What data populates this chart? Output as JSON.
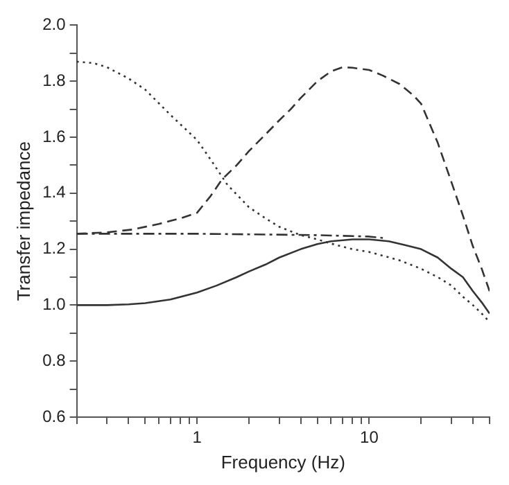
{
  "chart_data": {
    "type": "line",
    "xlabel": "Frequency (Hz)",
    "ylabel": "Transfer impedance",
    "log": "x",
    "grid": false,
    "marker": "none",
    "xlim": [
      0.2,
      50
    ],
    "ylim": [
      0.6,
      2.0
    ],
    "xticks": [
      {
        "value": 0.2,
        "label": null
      },
      {
        "value": 0.3,
        "label": null
      },
      {
        "value": 0.4,
        "label": null
      },
      {
        "value": 0.5,
        "label": null
      },
      {
        "value": 0.6,
        "label": null
      },
      {
        "value": 0.7,
        "label": null
      },
      {
        "value": 0.8,
        "label": null
      },
      {
        "value": 0.9,
        "label": null
      },
      1,
      {
        "value": 2,
        "label": null
      },
      {
        "value": 3,
        "label": null
      },
      {
        "value": 4,
        "label": null
      },
      {
        "value": 5,
        "label": null
      },
      {
        "value": 6,
        "label": null
      },
      {
        "value": 7,
        "label": null
      },
      {
        "value": 8,
        "label": null
      },
      {
        "value": 9,
        "label": null
      },
      10,
      {
        "value": 20,
        "label": null
      },
      {
        "value": 30,
        "label": null
      },
      {
        "value": 40,
        "label": null
      },
      {
        "value": 50,
        "label": null
      }
    ],
    "yticks": [
      0.6,
      {
        "value": 0.7,
        "label": null
      },
      0.8,
      {
        "value": 0.9,
        "label": null
      },
      {
        "value": 1,
        "label": "1.0"
      },
      {
        "value": 1.1,
        "label": null
      },
      1.2,
      {
        "value": 1.3,
        "label": null
      },
      1.4,
      {
        "value": 1.5,
        "label": null
      },
      1.6,
      {
        "value": 1.7,
        "label": null
      },
      1.8,
      {
        "value": 1.9,
        "label": null
      },
      {
        "value": 2,
        "label": "2.0"
      }
    ],
    "series": [
      {
        "color": "#333333",
        "line_style": "solid",
        "x": [
          0.2,
          0.3,
          0.4,
          0.5,
          0.7,
          1,
          1.3,
          1.7,
          2,
          2.5,
          3,
          4,
          5,
          6,
          8,
          10,
          13,
          16,
          20,
          25,
          30,
          35,
          40,
          45,
          50
        ],
        "values": [
          1.0,
          1.0,
          1.003,
          1.007,
          1.02,
          1.045,
          1.07,
          1.1,
          1.12,
          1.145,
          1.17,
          1.2,
          1.218,
          1.228,
          1.235,
          1.235,
          1.228,
          1.215,
          1.2,
          1.17,
          1.13,
          1.1,
          1.05,
          1.01,
          0.97
        ]
      },
      {
        "color": "#333333",
        "line_style": "dashed",
        "x": [
          0.2,
          0.3,
          0.42,
          0.6,
          0.8,
          1,
          1.2,
          1.4,
          1.7,
          2,
          2.5,
          3,
          3.5,
          4,
          5,
          6,
          7,
          8,
          10,
          12,
          15,
          18,
          20,
          25,
          30,
          35,
          40,
          45,
          50
        ],
        "values": [
          1.255,
          1.26,
          1.27,
          1.29,
          1.31,
          1.33,
          1.39,
          1.45,
          1.5,
          1.55,
          1.61,
          1.66,
          1.7,
          1.74,
          1.8,
          1.835,
          1.85,
          1.848,
          1.84,
          1.82,
          1.79,
          1.75,
          1.72,
          1.58,
          1.44,
          1.32,
          1.21,
          1.13,
          1.05
        ]
      },
      {
        "color": "#333333",
        "line_style": "dotted",
        "x": [
          0.2,
          0.25,
          0.3,
          0.4,
          0.5,
          0.7,
          1,
          1.2,
          1.5,
          2,
          2.5,
          3,
          4,
          5,
          6,
          8,
          10,
          15,
          20,
          25,
          30,
          35,
          40,
          45,
          50
        ],
        "values": [
          1.87,
          1.865,
          1.85,
          1.81,
          1.77,
          1.68,
          1.59,
          1.52,
          1.43,
          1.35,
          1.31,
          1.28,
          1.25,
          1.235,
          1.22,
          1.2,
          1.19,
          1.16,
          1.13,
          1.1,
          1.07,
          1.03,
          1.0,
          0.97,
          0.94
        ]
      },
      {
        "color": "#333333",
        "line_style": "dashdot",
        "x": [
          0.2,
          0.5,
          1,
          2,
          5,
          10,
          12
        ],
        "values": [
          1.255,
          1.255,
          1.255,
          1.253,
          1.25,
          1.245,
          1.24
        ]
      }
    ]
  }
}
